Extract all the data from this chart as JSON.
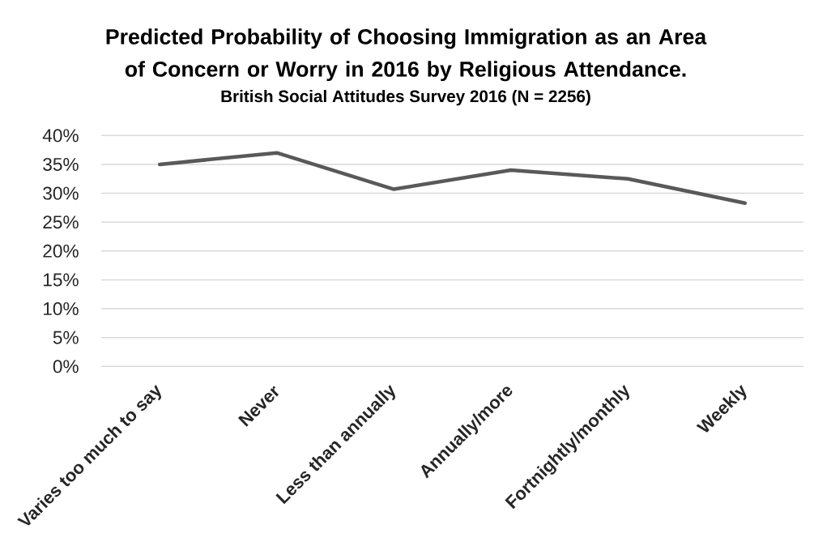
{
  "chart_data": {
    "type": "line",
    "title": "Predicted Probability of Choosing Immigration as an Area of Concern or Worry in 2016 by Religious Attendance.",
    "subtitle": "British Social Attitudes Survey 2016 (N = 2256)",
    "categories": [
      "Varies too much to say",
      "Never",
      "Less than annually",
      "Annually/more",
      "Fortnightly/monthly",
      "Weekly"
    ],
    "series": [
      {
        "color": "#595959",
        "values": [
          35,
          37,
          30.7,
          34,
          32.5,
          28.3
        ]
      }
    ],
    "ylim": [
      0,
      40
    ],
    "yticks": [
      {
        "value": 0,
        "label": "0%"
      },
      {
        "value": 5,
        "label": "5%"
      },
      {
        "value": 10,
        "label": "10%"
      },
      {
        "value": 15,
        "label": "15%"
      },
      {
        "value": 20,
        "label": "20%"
      },
      {
        "value": 25,
        "label": "25%"
      },
      {
        "value": 30,
        "label": "30%"
      },
      {
        "value": 35,
        "label": "35%"
      },
      {
        "value": 40,
        "label": "40%"
      }
    ],
    "grid": "y",
    "legend": false
  }
}
